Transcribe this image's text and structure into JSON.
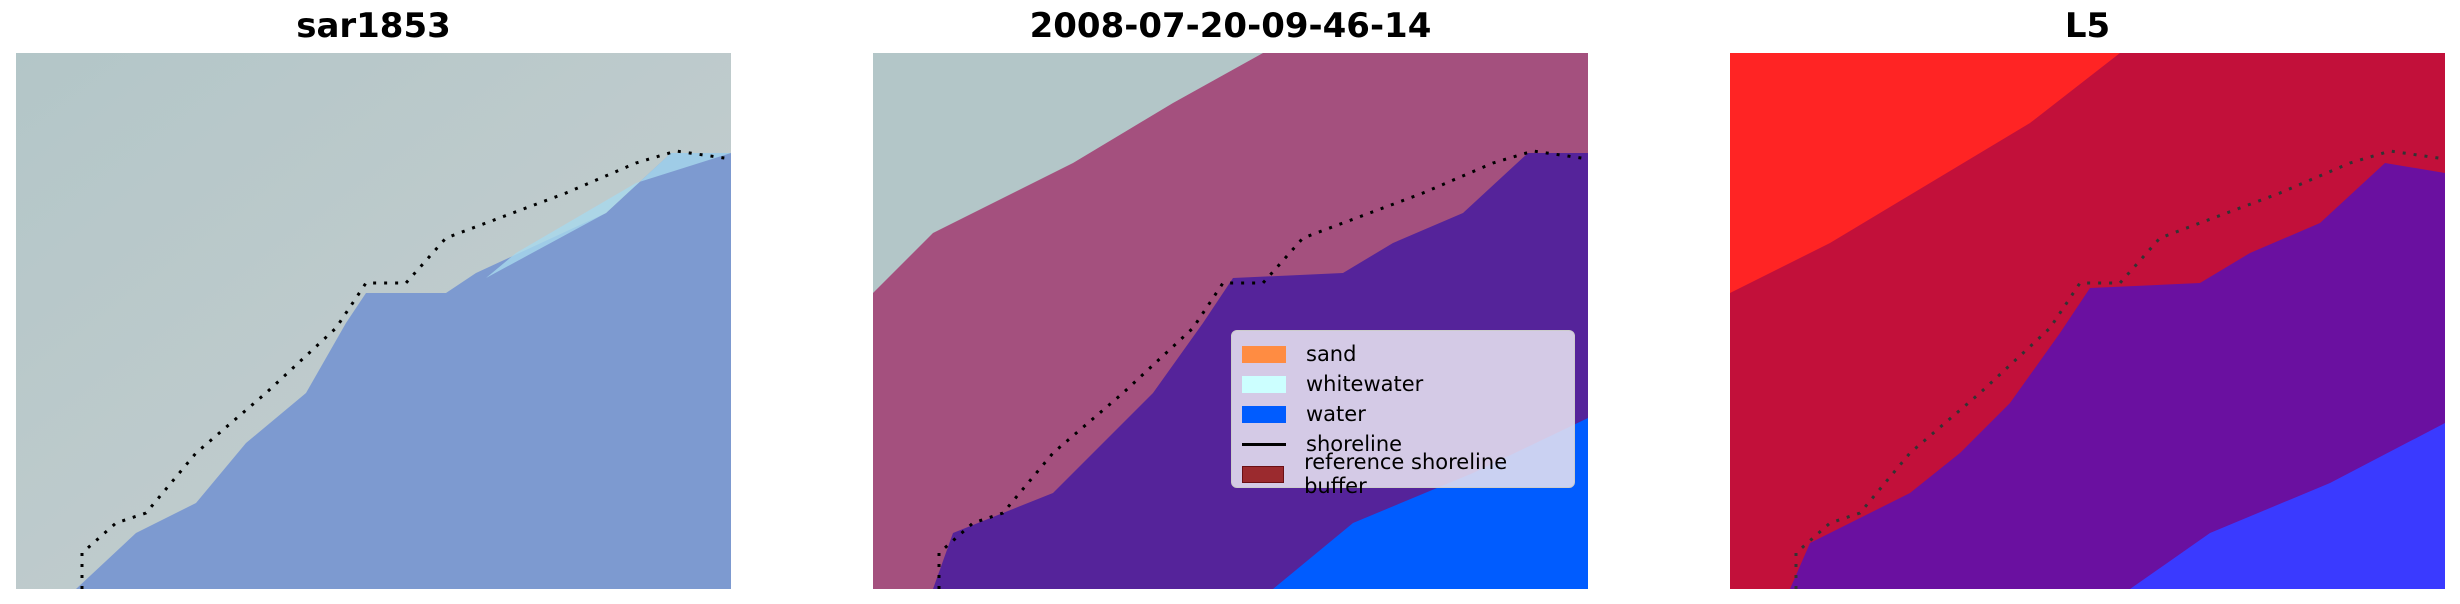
{
  "panels": [
    {
      "title": "sar1853"
    },
    {
      "title": "2008-07-20-09-46-14"
    },
    {
      "title": "L5"
    }
  ],
  "legend": {
    "items": [
      {
        "label": "sand",
        "color": "#ff8c42",
        "kind": "patch"
      },
      {
        "label": "whitewater",
        "color": "#ccffff",
        "kind": "patch"
      },
      {
        "label": "water",
        "color": "#005cff",
        "kind": "patch"
      },
      {
        "label": "shoreline",
        "color": "#000000",
        "kind": "line"
      },
      {
        "label": "reference shoreline buffer",
        "color": "#9b2a2e",
        "kind": "patch"
      }
    ]
  },
  "colors": {
    "land_rgb": "#b6c4c6",
    "water_rgb": "#7a98d0",
    "buffer": "#a4507e",
    "water_class": "#55239a",
    "ocean_class": "#005cff",
    "l5_land": "#ff2020",
    "l5_buffer": "#c2103a",
    "l5_water": "#6a10a0",
    "l5_ocean": "#3a3aff"
  }
}
